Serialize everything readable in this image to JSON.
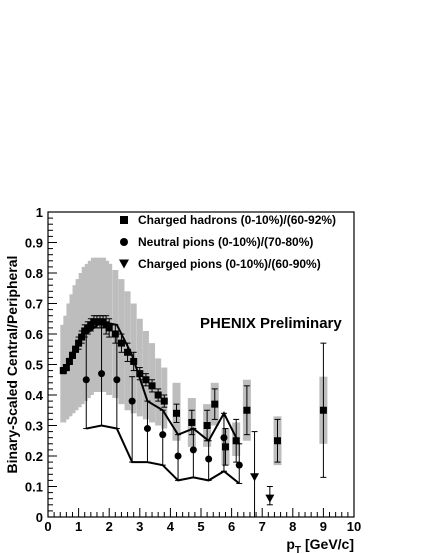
{
  "chart_data": {
    "type": "scatter",
    "xlabel": "p",
    "xlabel_sub": "T",
    "xlabel_unit": "[GeV/c]",
    "ylabel": "Binary-Scaled  Central/Peripheral",
    "xlim": [
      0,
      10
    ],
    "ylim": [
      0,
      1
    ],
    "x_ticks": [
      "0",
      "1",
      "2",
      "3",
      "4",
      "5",
      "6",
      "7",
      "8",
      "9",
      "10"
    ],
    "y_ticks": [
      "0",
      "0.1",
      "0.2",
      "0.3",
      "0.4",
      "0.5",
      "0.6",
      "0.7",
      "0.8",
      "0.9",
      "1"
    ],
    "annotation": "PHENIX Preliminary",
    "legend_position": "top",
    "series": [
      {
        "name": "Charged hadrons  (0-10%)/(60-92%)",
        "marker": "square",
        "points": [
          {
            "x": 0.5,
            "y": 0.48,
            "err": 0.01,
            "sys_low": 0.31,
            "sys_high": 0.63
          },
          {
            "x": 0.6,
            "y": 0.49,
            "err": 0.01,
            "sys_low": 0.32,
            "sys_high": 0.66
          },
          {
            "x": 0.7,
            "y": 0.51,
            "err": 0.01,
            "sys_low": 0.33,
            "sys_high": 0.7
          },
          {
            "x": 0.8,
            "y": 0.53,
            "err": 0.01,
            "sys_low": 0.34,
            "sys_high": 0.73
          },
          {
            "x": 0.9,
            "y": 0.55,
            "err": 0.01,
            "sys_low": 0.35,
            "sys_high": 0.76
          },
          {
            "x": 1.0,
            "y": 0.57,
            "err": 0.02,
            "sys_low": 0.36,
            "sys_high": 0.78
          },
          {
            "x": 1.1,
            "y": 0.59,
            "err": 0.02,
            "sys_low": 0.37,
            "sys_high": 0.8
          },
          {
            "x": 1.2,
            "y": 0.61,
            "err": 0.02,
            "sys_low": 0.38,
            "sys_high": 0.82
          },
          {
            "x": 1.3,
            "y": 0.62,
            "err": 0.02,
            "sys_low": 0.39,
            "sys_high": 0.83
          },
          {
            "x": 1.4,
            "y": 0.63,
            "err": 0.02,
            "sys_low": 0.4,
            "sys_high": 0.84
          },
          {
            "x": 1.5,
            "y": 0.64,
            "err": 0.02,
            "sys_low": 0.41,
            "sys_high": 0.85
          },
          {
            "x": 1.6,
            "y": 0.64,
            "err": 0.02,
            "sys_low": 0.41,
            "sys_high": 0.85
          },
          {
            "x": 1.7,
            "y": 0.64,
            "err": 0.02,
            "sys_low": 0.41,
            "sys_high": 0.85
          },
          {
            "x": 1.8,
            "y": 0.64,
            "err": 0.02,
            "sys_low": 0.41,
            "sys_high": 0.85
          },
          {
            "x": 1.9,
            "y": 0.63,
            "err": 0.03,
            "sys_low": 0.41,
            "sys_high": 0.84
          },
          {
            "x": 2.0,
            "y": 0.62,
            "err": 0.03,
            "sys_low": 0.4,
            "sys_high": 0.83
          },
          {
            "x": 2.2,
            "y": 0.6,
            "err": 0.03,
            "sys_low": 0.39,
            "sys_high": 0.81
          },
          {
            "x": 2.4,
            "y": 0.57,
            "err": 0.03,
            "sys_low": 0.37,
            "sys_high": 0.78
          },
          {
            "x": 2.6,
            "y": 0.54,
            "err": 0.03,
            "sys_low": 0.35,
            "sys_high": 0.74
          },
          {
            "x": 2.8,
            "y": 0.51,
            "err": 0.03,
            "sys_low": 0.34,
            "sys_high": 0.7
          },
          {
            "x": 3.0,
            "y": 0.47,
            "err": 0.02,
            "sys_low": 0.33,
            "sys_high": 0.65
          },
          {
            "x": 3.2,
            "y": 0.45,
            "err": 0.02,
            "sys_low": 0.32,
            "sys_high": 0.61
          },
          {
            "x": 3.4,
            "y": 0.43,
            "err": 0.02,
            "sys_low": 0.31,
            "sys_high": 0.57
          },
          {
            "x": 3.6,
            "y": 0.4,
            "err": 0.02,
            "sys_low": 0.3,
            "sys_high": 0.52
          },
          {
            "x": 3.8,
            "y": 0.38,
            "err": 0.02,
            "sys_low": 0.29,
            "sys_high": 0.49
          },
          {
            "x": 4.2,
            "y": 0.34,
            "err": 0.03,
            "sys_low": 0.25,
            "sys_high": 0.44
          },
          {
            "x": 4.7,
            "y": 0.31,
            "err": 0.04,
            "sys_low": 0.23,
            "sys_high": 0.39
          },
          {
            "x": 5.2,
            "y": 0.3,
            "err": 0.05,
            "sys_low": 0.23,
            "sys_high": 0.37
          },
          {
            "x": 5.45,
            "y": 0.37,
            "err": 0.05,
            "sys_low": 0.3,
            "sys_high": 0.44
          },
          {
            "x": 5.8,
            "y": 0.23,
            "err": 0.06,
            "sys_low": 0.17,
            "sys_high": 0.29
          },
          {
            "x": 6.15,
            "y": 0.25,
            "err": 0.07,
            "sys_low": 0.2,
            "sys_high": 0.31
          },
          {
            "x": 6.5,
            "y": 0.35,
            "err": 0.08,
            "sys_low": 0.25,
            "sys_high": 0.45
          },
          {
            "x": 7.5,
            "y": 0.25,
            "err": 0.07,
            "sys_low": 0.17,
            "sys_high": 0.33
          },
          {
            "x": 9.0,
            "y": 0.35,
            "err": 0.22,
            "sys_low": 0.24,
            "sys_high": 0.46
          }
        ]
      },
      {
        "name": "Neutral pions  (0-10%)/(70-80%)",
        "marker": "circle",
        "points": [
          {
            "x": 1.25,
            "y": 0.45,
            "err_low": 0.16,
            "err_high": 0.15
          },
          {
            "x": 1.75,
            "y": 0.47,
            "err_low": 0.17,
            "err_high": 0.17
          },
          {
            "x": 2.25,
            "y": 0.45,
            "err_low": 0.16,
            "err_high": 0.16
          },
          {
            "x": 2.75,
            "y": 0.38,
            "err_low": 0.2,
            "err_high": 0.08
          },
          {
            "x": 3.25,
            "y": 0.29,
            "err_low": 0.11,
            "err_high": 0.09
          },
          {
            "x": 3.75,
            "y": 0.27,
            "err_low": 0.1,
            "err_high": 0.08
          },
          {
            "x": 4.25,
            "y": 0.2,
            "err_low": 0.08,
            "err_high": 0.07
          },
          {
            "x": 4.75,
            "y": 0.22,
            "err_low": 0.09,
            "err_high": 0.07
          },
          {
            "x": 5.25,
            "y": 0.19,
            "err_low": 0.07,
            "err_high": 0.06
          },
          {
            "x": 5.75,
            "y": 0.26,
            "err_low": 0.11,
            "err_high": 0.08
          },
          {
            "x": 6.25,
            "y": 0.17,
            "err_low": 0.06,
            "err_high": 0.07
          }
        ],
        "band_high": [
          0.6,
          0.64,
          0.63,
          0.53,
          0.38,
          0.35,
          0.27,
          0.29,
          0.25,
          0.34,
          0.24
        ],
        "band_low": [
          0.29,
          0.3,
          0.29,
          0.18,
          0.18,
          0.17,
          0.12,
          0.13,
          0.12,
          0.15,
          0.11
        ]
      },
      {
        "name": "Charged pions  (0-10%)/(60-90%)",
        "marker": "triangle-down",
        "points": [
          {
            "x": 6.75,
            "y": 0.13,
            "err_low": 0.13,
            "err_high": 0.15
          },
          {
            "x": 7.25,
            "y": 0.06,
            "err_low": 0.02,
            "err_high": 0.04
          }
        ]
      }
    ]
  }
}
